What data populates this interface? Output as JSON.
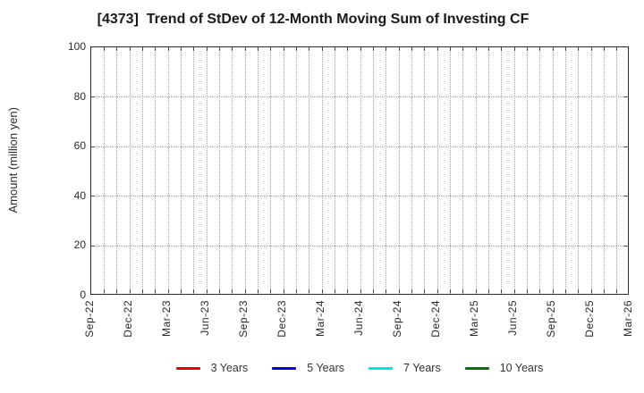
{
  "chart_data": {
    "type": "line",
    "title": "[4373]  Trend of StDev of 12-Month Moving Sum of Investing CF",
    "xlabel": "",
    "ylabel": "Amount (million yen)",
    "ylim": [
      0,
      100
    ],
    "yticks": [
      0,
      20,
      40,
      60,
      80,
      100
    ],
    "x_tick_labels": [
      "Sep-22",
      "Dec-22",
      "Mar-23",
      "Jun-23",
      "Sep-23",
      "Dec-23",
      "Mar-24",
      "Jun-24",
      "Sep-24",
      "Dec-24",
      "Mar-25",
      "Jun-25",
      "Sep-25",
      "Dec-25",
      "Mar-26"
    ],
    "minor_x_divisions_per_label": 3,
    "grid": "dotted",
    "plot_is_empty": true,
    "legend_position": "bottom",
    "series": [
      {
        "name": "3 Years",
        "color": "#ee0000",
        "values": []
      },
      {
        "name": "5 Years",
        "color": "#0000dd",
        "values": []
      },
      {
        "name": "7 Years",
        "color": "#00e6e6",
        "values": []
      },
      {
        "name": "10 Years",
        "color": "#007700",
        "values": []
      }
    ]
  }
}
